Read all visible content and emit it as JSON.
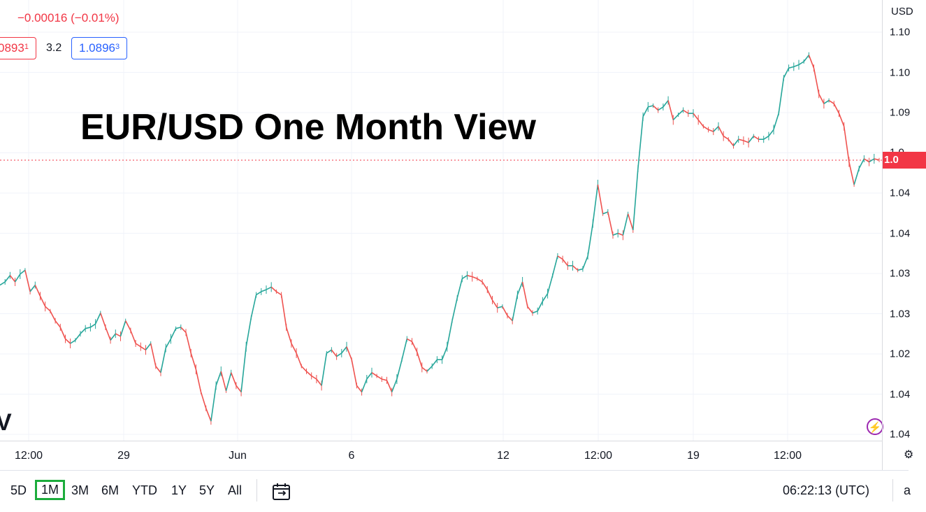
{
  "chart_data": {
    "type": "candlestick-line",
    "title": "EUR/USD One Month View",
    "currency": "USD",
    "last_price_label": "1.0",
    "price_axis_labels": [
      "1.10",
      "1.10",
      "1.09",
      "1.0",
      "1.04",
      "1.04",
      "1.03",
      "1.03",
      "1.02",
      "1.04",
      "1.04",
      "1.0"
    ],
    "time_labels": [
      "12:00",
      "29",
      "Jun",
      "6",
      "12",
      "12:00",
      "19",
      "12:00"
    ],
    "ylim": [
      1.0515,
      1.1195
    ],
    "close_series": [
      1.0755,
      1.076,
      1.077,
      1.076,
      1.0772,
      1.0778,
      1.0745,
      1.0755,
      1.0738,
      1.0722,
      1.0715,
      1.07,
      1.069,
      1.0672,
      1.0665,
      1.067,
      1.068,
      1.0688,
      1.069,
      1.0695,
      1.0712,
      1.069,
      1.067,
      1.068,
      1.0676,
      1.07,
      1.0685,
      1.0665,
      1.066,
      1.0655,
      1.0665,
      1.063,
      1.062,
      1.0658,
      1.0672,
      1.0688,
      1.069,
      1.0682,
      1.065,
      1.0625,
      1.059,
      1.0565,
      1.0545,
      1.06,
      1.0622,
      1.0592,
      1.062,
      1.06,
      1.059,
      1.066,
      1.0705,
      1.074,
      1.0745,
      1.0748,
      1.0752,
      1.0745,
      1.074,
      1.069,
      1.0665,
      1.065,
      1.063,
      1.0622,
      1.0615,
      1.061,
      1.06,
      1.065,
      1.0655,
      1.0645,
      1.065,
      1.066,
      1.064,
      1.06,
      1.059,
      1.061,
      1.062,
      1.0615,
      1.061,
      1.0608,
      1.059,
      1.061,
      1.064,
      1.0672,
      1.0668,
      1.0652,
      1.0628,
      1.0622,
      1.063,
      1.064,
      1.064,
      1.066,
      1.07,
      1.0735,
      1.0765,
      1.077,
      1.0768,
      1.0765,
      1.076,
      1.0748,
      1.0732,
      1.072,
      1.0722,
      1.0708,
      1.07,
      1.074,
      1.076,
      1.0722,
      1.0712,
      1.0715,
      1.073,
      1.0742,
      1.077,
      1.08,
      1.0795,
      1.0785,
      1.0785,
      1.0778,
      1.078,
      1.08,
      1.085,
      1.091,
      1.0865,
      1.0868,
      1.0832,
      1.0835,
      1.0832,
      1.0865,
      1.084,
      1.0935,
      1.1015,
      1.103,
      1.1032,
      1.1025,
      1.103,
      1.104,
      1.101,
      1.1018,
      1.1025,
      1.102,
      1.102,
      1.101,
      1.1,
      1.0995,
      1.0992,
      1.1,
      1.0985,
      1.098,
      1.097,
      1.098,
      1.0978,
      1.0975,
      1.0985,
      1.098,
      1.098,
      1.0985,
      1.0995,
      1.102,
      1.1075,
      1.109,
      1.1092,
      1.1095,
      1.11,
      1.111,
      1.109,
      1.105,
      1.1035,
      1.104,
      1.1035,
      1.102,
      1.1,
      1.0945,
      1.091,
      1.0935,
      1.095,
      1.0945,
      1.095,
      1.0948
    ]
  },
  "quote": {
    "change": "−0.00016 (−0.01%)",
    "bid_main": "0893",
    "bid_sup": "1",
    "spread": "3.2",
    "ask_main": "1.0896",
    "ask_sup": "3"
  },
  "watermark": "V",
  "lightning_icon": "⚡",
  "bottom_bar": {
    "ranges": [
      "5D",
      "1M",
      "3M",
      "6M",
      "YTD",
      "1Y",
      "5Y",
      "All"
    ],
    "selected_range": "1M",
    "clock": "06:22:13 (UTC)",
    "extra": "a",
    "corner": "⚙"
  },
  "colors": {
    "up": "#26a69a",
    "down": "#ef5350",
    "grid": "#f0f3fa",
    "last_price": "#f23645",
    "highlight": "#1cac3c"
  }
}
